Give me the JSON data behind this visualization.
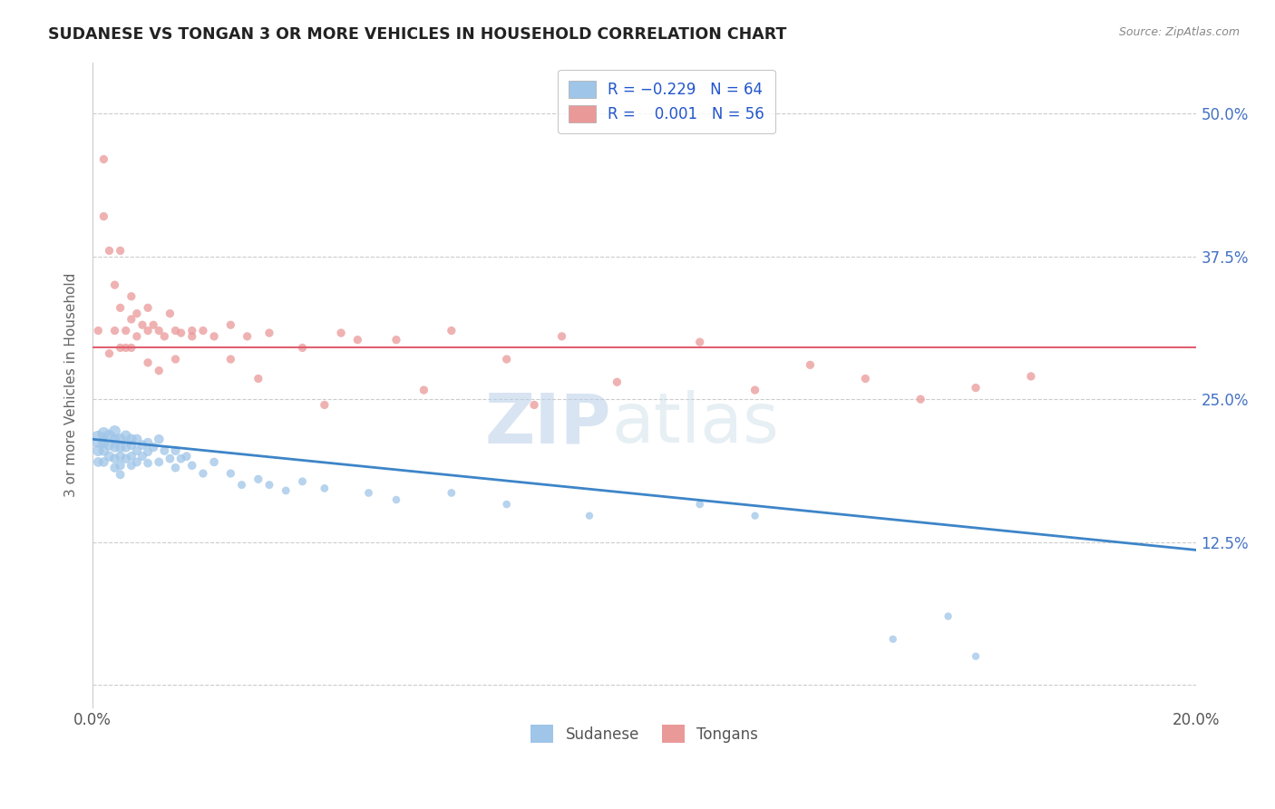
{
  "title": "SUDANESE VS TONGAN 3 OR MORE VEHICLES IN HOUSEHOLD CORRELATION CHART",
  "source": "Source: ZipAtlas.com",
  "ylabel": "3 or more Vehicles in Household",
  "xlim": [
    0.0,
    0.2
  ],
  "ylim": [
    -0.02,
    0.545
  ],
  "yticks": [
    0.0,
    0.125,
    0.25,
    0.375,
    0.5
  ],
  "ytick_labels": [
    "",
    "12.5%",
    "25.0%",
    "37.5%",
    "50.0%"
  ],
  "xticks": [
    0.0,
    0.05,
    0.1,
    0.15,
    0.2
  ],
  "xtick_labels": [
    "0.0%",
    "",
    "",
    "",
    "20.0%"
  ],
  "legend_line1": "R = -0.229   N = 64",
  "legend_line2": "R =  0.001   N = 56",
  "watermark_zip": "ZIP",
  "watermark_atlas": "atlas",
  "blue_color": "#9fc5e8",
  "pink_color": "#ea9999",
  "blue_line_color": "#3d85c8",
  "pink_line_color": "#e06070",
  "blue_trend_x": [
    0.0,
    0.2
  ],
  "blue_trend_y": [
    0.215,
    0.118
  ],
  "pink_trend_y_val": 0.295,
  "bg_color": "#ffffff",
  "grid_color": "#cccccc",
  "sudanese_x": [
    0.001,
    0.001,
    0.001,
    0.002,
    0.002,
    0.002,
    0.002,
    0.003,
    0.003,
    0.003,
    0.004,
    0.004,
    0.004,
    0.004,
    0.004,
    0.005,
    0.005,
    0.005,
    0.005,
    0.005,
    0.006,
    0.006,
    0.006,
    0.007,
    0.007,
    0.007,
    0.007,
    0.008,
    0.008,
    0.008,
    0.009,
    0.009,
    0.01,
    0.01,
    0.01,
    0.011,
    0.012,
    0.012,
    0.013,
    0.014,
    0.015,
    0.015,
    0.016,
    0.017,
    0.018,
    0.02,
    0.022,
    0.025,
    0.027,
    0.03,
    0.032,
    0.035,
    0.038,
    0.042,
    0.05,
    0.055,
    0.065,
    0.075,
    0.09,
    0.11,
    0.12,
    0.145,
    0.155,
    0.16
  ],
  "sudanese_y": [
    0.215,
    0.205,
    0.195,
    0.22,
    0.212,
    0.205,
    0.195,
    0.218,
    0.21,
    0.2,
    0.222,
    0.215,
    0.208,
    0.198,
    0.19,
    0.215,
    0.208,
    0.2,
    0.192,
    0.184,
    0.218,
    0.208,
    0.198,
    0.215,
    0.21,
    0.2,
    0.192,
    0.215,
    0.205,
    0.195,
    0.21,
    0.2,
    0.212,
    0.204,
    0.194,
    0.208,
    0.215,
    0.195,
    0.205,
    0.198,
    0.205,
    0.19,
    0.198,
    0.2,
    0.192,
    0.185,
    0.195,
    0.185,
    0.175,
    0.18,
    0.175,
    0.17,
    0.178,
    0.172,
    0.168,
    0.162,
    0.168,
    0.158,
    0.148,
    0.158,
    0.148,
    0.04,
    0.06,
    0.025
  ],
  "sudanese_size": [
    180,
    80,
    60,
    100,
    80,
    70,
    60,
    90,
    75,
    65,
    85,
    70,
    65,
    58,
    55,
    80,
    70,
    62,
    55,
    50,
    75,
    65,
    58,
    70,
    62,
    55,
    50,
    65,
    58,
    52,
    60,
    52,
    58,
    52,
    48,
    55,
    60,
    50,
    52,
    50,
    55,
    48,
    50,
    50,
    48,
    45,
    48,
    45,
    42,
    45,
    42,
    40,
    42,
    40,
    40,
    38,
    40,
    38,
    36,
    38,
    36,
    36,
    36,
    36
  ],
  "tongans_x": [
    0.001,
    0.002,
    0.002,
    0.003,
    0.004,
    0.004,
    0.005,
    0.005,
    0.006,
    0.006,
    0.007,
    0.007,
    0.008,
    0.008,
    0.009,
    0.01,
    0.01,
    0.011,
    0.012,
    0.013,
    0.014,
    0.015,
    0.016,
    0.018,
    0.02,
    0.022,
    0.025,
    0.028,
    0.032,
    0.038,
    0.045,
    0.055,
    0.065,
    0.075,
    0.085,
    0.095,
    0.11,
    0.12,
    0.13,
    0.14,
    0.15,
    0.16,
    0.17,
    0.01,
    0.012,
    0.06,
    0.08,
    0.03,
    0.042,
    0.048,
    0.003,
    0.005,
    0.007,
    0.015,
    0.018,
    0.025
  ],
  "tongans_y": [
    0.31,
    0.46,
    0.41,
    0.38,
    0.35,
    0.31,
    0.33,
    0.38,
    0.31,
    0.295,
    0.34,
    0.32,
    0.325,
    0.305,
    0.315,
    0.33,
    0.31,
    0.315,
    0.31,
    0.305,
    0.325,
    0.31,
    0.308,
    0.305,
    0.31,
    0.305,
    0.315,
    0.305,
    0.308,
    0.295,
    0.308,
    0.302,
    0.31,
    0.285,
    0.305,
    0.265,
    0.3,
    0.258,
    0.28,
    0.268,
    0.25,
    0.26,
    0.27,
    0.282,
    0.275,
    0.258,
    0.245,
    0.268,
    0.245,
    0.302,
    0.29,
    0.295,
    0.295,
    0.285,
    0.31,
    0.285
  ],
  "tongans_size": [
    45,
    45,
    45,
    45,
    45,
    45,
    45,
    45,
    45,
    45,
    45,
    45,
    45,
    45,
    45,
    45,
    45,
    45,
    45,
    45,
    45,
    45,
    45,
    45,
    45,
    45,
    45,
    45,
    45,
    45,
    45,
    45,
    45,
    45,
    45,
    45,
    45,
    45,
    45,
    45,
    45,
    45,
    45,
    45,
    45,
    45,
    45,
    45,
    45,
    45,
    45,
    45,
    45,
    45,
    45,
    45
  ]
}
